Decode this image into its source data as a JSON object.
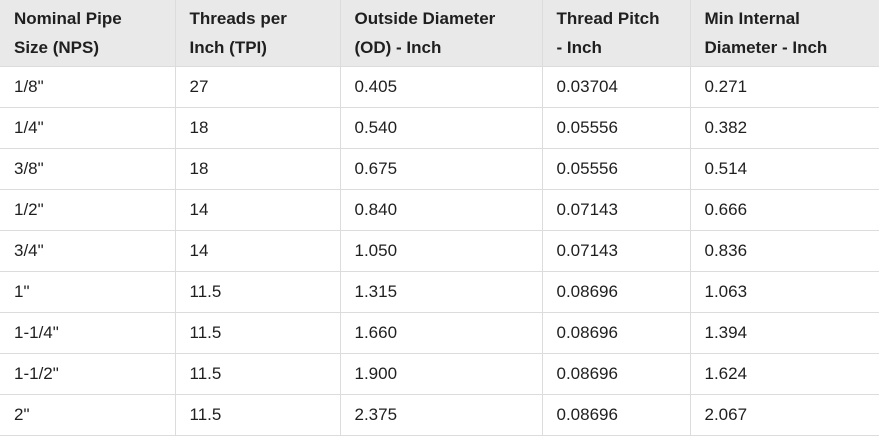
{
  "table": {
    "header": [
      "Nominal Pipe Size (NPS)",
      "Threads per Inch (TPI)",
      "Outside Diameter (OD) - Inch",
      "Thread Pitch - Inch",
      "Min Internal Diameter - Inch"
    ],
    "rows": [
      [
        "1/8\"",
        "27",
        "0.405",
        "0.03704",
        "0.271"
      ],
      [
        "1/4\"",
        "18",
        "0.540",
        "0.05556",
        "0.382"
      ],
      [
        "3/8\"",
        "18",
        "0.675",
        "0.05556",
        "0.514"
      ],
      [
        "1/2\"",
        "14",
        "0.840",
        "0.07143",
        "0.666"
      ],
      [
        "3/4\"",
        "14",
        "1.050",
        "0.07143",
        "0.836"
      ],
      [
        "1\"",
        "11.5",
        "1.315",
        "0.08696",
        "1.063"
      ],
      [
        "1-1/4\"",
        "11.5",
        "1.660",
        "0.08696",
        "1.394"
      ],
      [
        "1-1/2\"",
        "11.5",
        "1.900",
        "0.08696",
        "1.624"
      ],
      [
        "2\"",
        "11.5",
        "2.375",
        "0.08696",
        "2.067"
      ]
    ]
  }
}
